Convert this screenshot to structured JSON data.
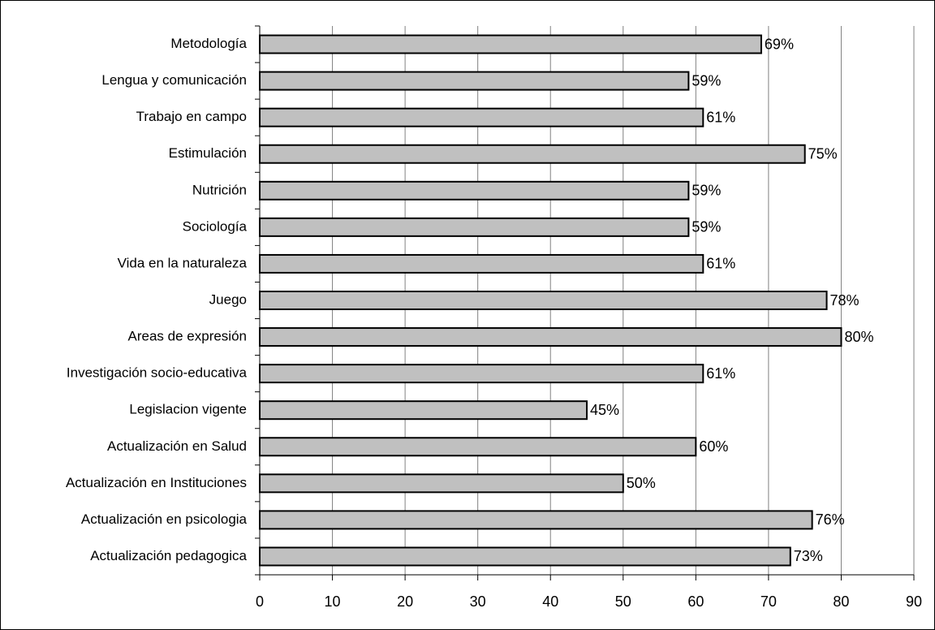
{
  "chart_data": {
    "type": "hbar",
    "categories": [
      "Metodología",
      "Lengua y comunicación",
      "Trabajo en campo",
      "Estimulación",
      "Nutrición",
      "Sociología",
      "Vida en la naturaleza",
      "Juego",
      "Areas de expresión",
      "Investigación socio-educativa",
      "Legislacion vigente",
      "Actualización en Salud",
      "Actualización en Instituciones",
      "Actualización en psicologia",
      "Actualización pedagogica"
    ],
    "values": [
      69,
      59,
      61,
      75,
      59,
      59,
      61,
      78,
      80,
      61,
      45,
      60,
      50,
      76,
      73
    ],
    "value_labels": [
      "69%",
      "59%",
      "61%",
      "75%",
      "59%",
      "59%",
      "61%",
      "78%",
      "80%",
      "61%",
      "45%",
      "60%",
      "50%",
      "76%",
      "73%"
    ],
    "color": "#c0c0c0",
    "xlim": [
      0,
      90
    ],
    "xticks": [
      0,
      10,
      20,
      30,
      40,
      50,
      60,
      70,
      80,
      90
    ],
    "grid": true
  }
}
